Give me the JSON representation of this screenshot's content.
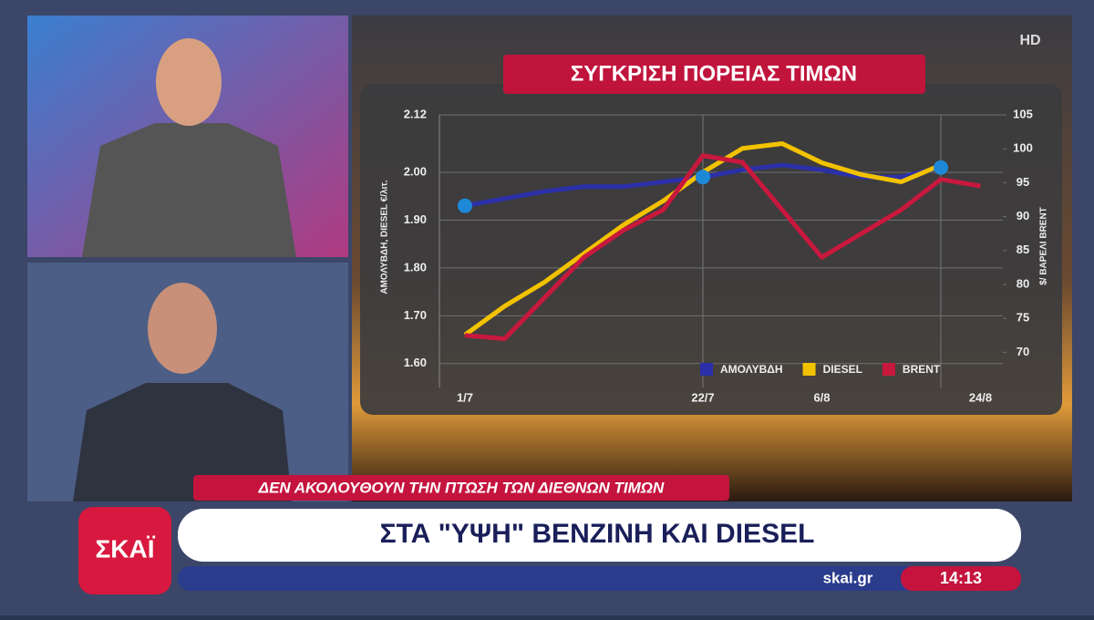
{
  "chart_data": {
    "type": "line",
    "title": "ΣΥΓΚΡΙΣΗ ΠΟΡΕΙΑΣ ΤΙΜΩΝ",
    "y_label": "ΑΜΟΛΥΒΔΗ, DIESEL €/λιτ.",
    "y2_label": "$/ ΒΑΡΕΛΙ BRENT",
    "categories": [
      "1/7",
      null,
      null,
      null,
      null,
      null,
      "22/7",
      null,
      null,
      "6/8",
      null,
      null,
      null,
      "24/8"
    ],
    "series": [
      {
        "name": "ΑΜΟΛΥΒΔΗ",
        "color": "#2b30a8",
        "values": [
          1.93,
          1.945,
          1.96,
          1.97,
          1.97,
          1.98,
          1.99,
          2.005,
          2.015,
          2.005,
          1.99,
          1.99,
          2.01,
          null
        ]
      },
      {
        "name": "DIESEL",
        "color": "#f2c200",
        "values": [
          1.66,
          1.72,
          1.77,
          1.83,
          1.89,
          1.94,
          2.0,
          2.05,
          2.06,
          2.02,
          1.995,
          1.98,
          2.015,
          null
        ]
      },
      {
        "name": "BRENT",
        "color": "#c8183e",
        "axis": "y2",
        "values": [
          72.5,
          72,
          78,
          84,
          88,
          91,
          99,
          98,
          91,
          84,
          87.5,
          91,
          95.5,
          94.5
        ]
      }
    ],
    "ylim": [
      1.55,
      2.12
    ],
    "yticks": [
      {
        "value": 1.6,
        "label": "1.60"
      },
      {
        "value": 1.7,
        "label": "1.70"
      },
      {
        "value": 1.8,
        "label": "1.80"
      },
      {
        "value": 1.9,
        "label": "1.90"
      },
      {
        "value": 2,
        "label": "2.00"
      },
      2.12
    ],
    "y2lim": [
      64.8,
      105
    ],
    "y2ticks": [
      70,
      75,
      80,
      85,
      90,
      95,
      100,
      105
    ],
    "grid": true,
    "legend": "bottom-right"
  },
  "broadcast": {
    "hd": "HD",
    "strap": "ΔΕΝ ΑΚΟΛΟΥΘΟΥΝ ΤΗΝ ΠΤΩΣΗ ΤΩΝ ΔΙΕΘΝΩΝ ΤΙΜΩΝ",
    "headline": "ΣΤΑ \"ΥΨΗ\" ΒΕΝΖΙΝΗ ΚΑΙ DIESEL",
    "logo": "ΣΚΑΪ",
    "site": "skai.gr",
    "time": "14:13"
  }
}
